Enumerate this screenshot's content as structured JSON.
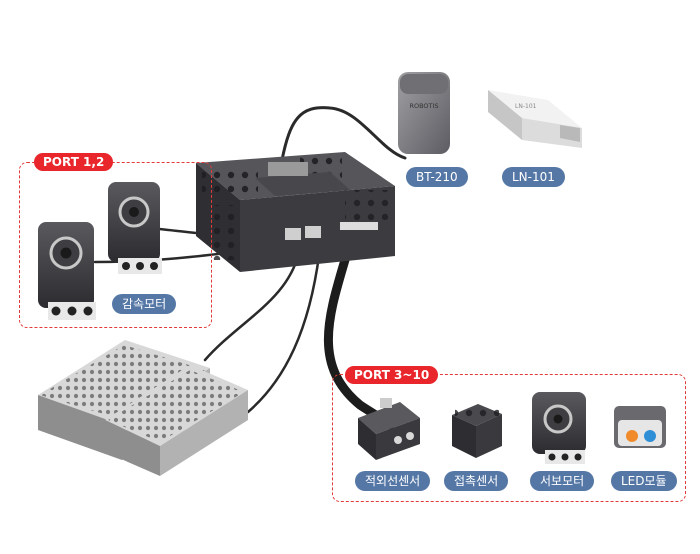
{
  "ports": {
    "group_a": "PORT 1,2",
    "group_b": "PORT 3~10"
  },
  "labels": {
    "bt": "BT-210",
    "ln": "LN-101",
    "geared_motor": "감속모터",
    "ir_sensor": "적외선센서",
    "touch_sensor": "접촉센서",
    "servo_motor": "서보모터",
    "led_module": "LED모듈"
  },
  "module_text": {
    "bt_logo": "ROBOTIS",
    "ln_text": "LN-101"
  },
  "colors": {
    "accent": "#e8262b",
    "label_bg": "#5577a6",
    "dashed": "#e23a3a"
  }
}
